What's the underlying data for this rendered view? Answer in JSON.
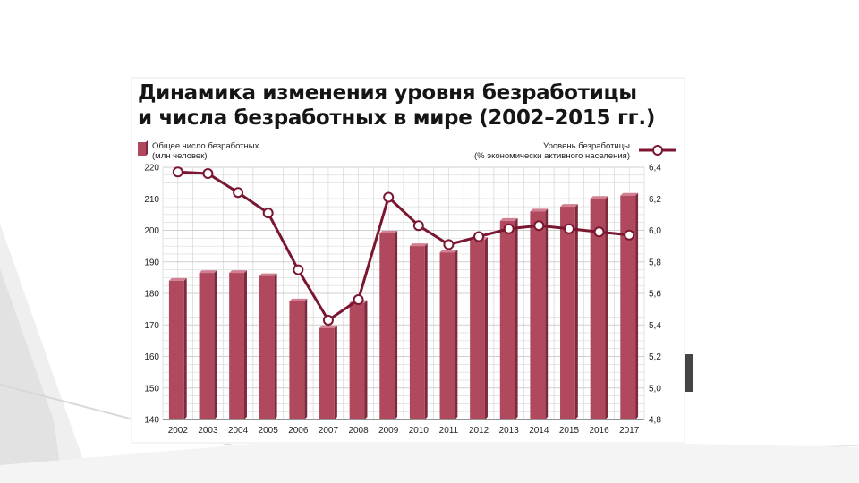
{
  "chart_data": {
    "type": "bar",
    "title": [
      "Динамика изменения уровня безработицы",
      "и числа безработных в мире (2002–2015 гг.)"
    ],
    "categories": [
      "2002",
      "2003",
      "2004",
      "2005",
      "2006",
      "2007",
      "2008",
      "2009",
      "2010",
      "2011",
      "2012",
      "2013",
      "2014",
      "2015",
      "2016",
      "2017"
    ],
    "series": [
      {
        "name": [
          "Общее число безработных",
          "(млн человек)"
        ],
        "kind": "bar",
        "axis": "left",
        "values": [
          184,
          186.5,
          186.5,
          185.5,
          177.5,
          169,
          177,
          199,
          195,
          193,
          197,
          203,
          206,
          207.5,
          210,
          211
        ]
      },
      {
        "name": [
          "Уровень безработицы",
          "(% экономически активного населения)"
        ],
        "kind": "line",
        "axis": "right",
        "values": [
          6.37,
          6.36,
          6.24,
          6.11,
          5.75,
          5.43,
          5.56,
          6.21,
          6.03,
          5.91,
          5.96,
          6.01,
          6.03,
          6.01,
          5.99,
          5.97
        ]
      }
    ],
    "yleft": {
      "lim": [
        140,
        220
      ],
      "ticks": [
        140,
        150,
        160,
        170,
        180,
        190,
        200,
        210,
        220
      ]
    },
    "yright": {
      "lim": [
        4.8,
        6.4
      ],
      "ticks": [
        "4,8",
        "5,0",
        "5,2",
        "5,4",
        "5,6",
        "5,8",
        "6,0",
        "6,2",
        "6,4"
      ]
    },
    "grid": true,
    "legend": "top",
    "colors": {
      "bar": "#b0485e",
      "bar_side": "#7e2a3e",
      "bar_top": "#d27f92",
      "line": "#7a1630",
      "grid": "#cfcfcf"
    }
  }
}
